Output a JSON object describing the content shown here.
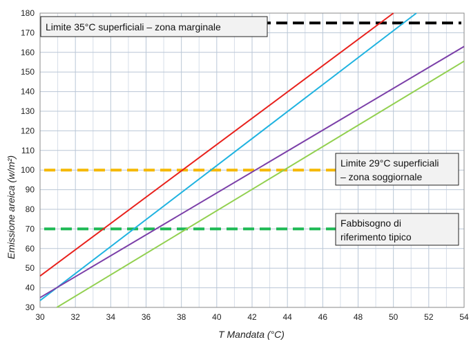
{
  "chart_data": {
    "type": "line",
    "title": "",
    "xlabel": "T Mandata (°C)",
    "ylabel": "Emissione areica (w/m²)",
    "xlim": [
      30,
      54
    ],
    "ylim": [
      30,
      180
    ],
    "xticks": [
      30,
      32,
      34,
      36,
      38,
      40,
      42,
      44,
      46,
      48,
      50,
      52,
      54
    ],
    "yticks": [
      30,
      40,
      50,
      60,
      70,
      80,
      90,
      100,
      110,
      120,
      130,
      140,
      150,
      160,
      170,
      180
    ],
    "grid": true,
    "series": [
      {
        "color": "#e8211c",
        "x": [
          30,
          50
        ],
        "y": [
          46,
          180
        ]
      },
      {
        "color": "#1fb3e0",
        "x": [
          30,
          51.3
        ],
        "y": [
          33.5,
          180
        ]
      },
      {
        "color": "#7b3fa8",
        "x": [
          30,
          54
        ],
        "y": [
          35,
          163
        ]
      },
      {
        "color": "#92d050",
        "x": [
          30.95,
          54
        ],
        "y": [
          30,
          155.5
        ]
      }
    ],
    "reference_lines": [
      {
        "y": 175,
        "color": "#000000",
        "label": "Limite 35°C superficiali – zona marginale"
      },
      {
        "y": 100,
        "color": "#f5b800",
        "label": "Limite 29°C superficiali – zona soggiornale"
      },
      {
        "y": 70,
        "color": "#1db954",
        "label": "Fabbisogno di riferimento tipico"
      }
    ]
  }
}
